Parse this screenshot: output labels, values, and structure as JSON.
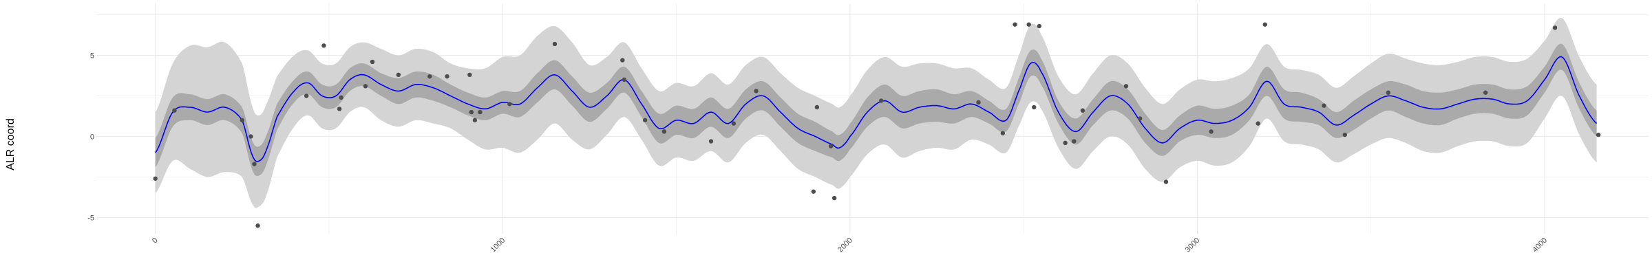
{
  "chart_data": {
    "type": "line",
    "title": "",
    "xlabel": "",
    "ylabel": "ALR coord",
    "xlim": [
      -150,
      4230
    ],
    "ylim": [
      -6.0,
      8.2
    ],
    "x_ticks": [
      0,
      1000,
      2000,
      3000,
      4000
    ],
    "x_tick_labels": [
      "0",
      "1000",
      "2000",
      "3000",
      "4000"
    ],
    "y_ticks": [
      -5,
      0,
      5
    ],
    "y_tick_labels": [
      "-5",
      "0",
      "5"
    ],
    "grid": true,
    "colors": {
      "mean_line": "#0000ff",
      "inner_band": "#aaaaaa",
      "outer_band": "#d4d4d4",
      "points": "#4d4d4d",
      "grid": "#ebebeb"
    },
    "series": [
      {
        "role": "mean",
        "x": [
          0,
          50,
          100,
          150,
          200,
          250,
          280,
          300,
          320,
          350,
          400,
          440,
          480,
          520,
          560,
          600,
          650,
          700,
          750,
          800,
          850,
          900,
          950,
          1000,
          1050,
          1100,
          1150,
          1200,
          1250,
          1300,
          1350,
          1400,
          1450,
          1500,
          1550,
          1600,
          1650,
          1700,
          1750,
          1800,
          1850,
          1900,
          1950,
          1970,
          2000,
          2050,
          2100,
          2150,
          2200,
          2250,
          2300,
          2350,
          2400,
          2450,
          2490,
          2520,
          2550,
          2600,
          2650,
          2700,
          2750,
          2800,
          2850,
          2900,
          2950,
          3000,
          3050,
          3100,
          3150,
          3200,
          3250,
          3300,
          3350,
          3400,
          3450,
          3500,
          3550,
          3600,
          3650,
          3700,
          3750,
          3800,
          3850,
          3900,
          3950,
          4000,
          4050,
          4100,
          4150
        ],
        "y": [
          -1.0,
          1.5,
          1.8,
          1.5,
          1.8,
          1.0,
          -1.2,
          -1.5,
          -0.8,
          1.2,
          2.8,
          3.3,
          2.5,
          2.5,
          3.5,
          3.8,
          3.2,
          2.8,
          3.2,
          3.0,
          2.5,
          2.0,
          1.7,
          2.1,
          2.0,
          3.0,
          3.8,
          2.8,
          1.8,
          2.5,
          3.5,
          2.0,
          0.5,
          1.0,
          0.8,
          1.5,
          0.8,
          2.0,
          2.5,
          1.5,
          0.5,
          0.0,
          -0.5,
          -0.7,
          0.0,
          1.5,
          2.2,
          1.5,
          1.8,
          1.9,
          1.7,
          2.0,
          1.5,
          1.0,
          3.0,
          4.5,
          4.0,
          1.5,
          0.3,
          1.5,
          2.5,
          2.0,
          0.5,
          -0.4,
          0.5,
          1.0,
          0.8,
          1.0,
          1.8,
          3.4,
          2.0,
          1.8,
          1.5,
          0.7,
          1.3,
          2.0,
          2.5,
          2.2,
          1.8,
          1.7,
          2.0,
          2.3,
          2.3,
          2.0,
          2.2,
          3.5,
          4.9,
          2.5,
          0.8
        ]
      }
    ],
    "inner_band_halfwidth": [
      0.9,
      0.9,
      0.8,
      0.8,
      0.8,
      0.8,
      0.9,
      0.9,
      0.9,
      0.8,
      0.7,
      0.7,
      0.7,
      0.7,
      0.7,
      0.7,
      0.7,
      0.8,
      0.8,
      0.8,
      0.7,
      0.7,
      0.7,
      0.7,
      0.8,
      0.9,
      0.9,
      0.9,
      0.9,
      0.8,
      0.8,
      0.8,
      0.9,
      0.9,
      0.9,
      0.9,
      0.9,
      0.9,
      0.9,
      0.9,
      0.9,
      0.9,
      0.8,
      0.8,
      0.8,
      0.9,
      1.0,
      1.0,
      1.0,
      1.0,
      0.9,
      0.8,
      0.7,
      0.7,
      0.8,
      0.8,
      0.8,
      0.7,
      0.8,
      0.8,
      0.9,
      0.9,
      0.9,
      0.8,
      0.8,
      0.9,
      0.9,
      0.9,
      0.8,
      0.9,
      0.9,
      0.9,
      0.8,
      0.8,
      0.9,
      0.9,
      0.9,
      1.0,
      1.0,
      1.0,
      0.9,
      0.9,
      0.9,
      0.9,
      0.9,
      0.8,
      0.8,
      0.8,
      0.8
    ],
    "outer_band_halfwidth": [
      2.5,
      3.0,
      3.8,
      4.0,
      4.0,
      3.5,
      3.0,
      2.8,
      2.8,
      2.5,
      2.2,
      2.0,
      2.0,
      2.0,
      2.0,
      2.0,
      2.2,
      2.2,
      2.2,
      2.2,
      2.0,
      2.2,
      2.5,
      2.8,
      3.0,
      3.2,
      3.0,
      3.0,
      2.6,
      2.4,
      2.3,
      2.2,
      2.3,
      2.3,
      2.3,
      2.4,
      2.4,
      2.4,
      2.4,
      2.4,
      2.5,
      2.5,
      2.5,
      2.5,
      2.5,
      2.6,
      2.7,
      2.8,
      2.7,
      2.6,
      2.5,
      2.2,
      2.0,
      2.0,
      2.2,
      2.4,
      2.3,
      2.2,
      2.3,
      2.4,
      2.5,
      2.5,
      2.5,
      2.4,
      2.4,
      2.5,
      2.6,
      2.6,
      2.4,
      2.3,
      2.3,
      2.3,
      2.3,
      2.3,
      2.4,
      2.5,
      2.6,
      2.6,
      2.7,
      2.7,
      2.6,
      2.6,
      2.6,
      2.6,
      2.6,
      2.4,
      2.4,
      2.4,
      2.4
    ],
    "points": [
      {
        "x": 0,
        "y": -2.6
      },
      {
        "x": 55,
        "y": 1.6
      },
      {
        "x": 250,
        "y": 1.0
      },
      {
        "x": 275,
        "y": 0.0
      },
      {
        "x": 285,
        "y": -1.7
      },
      {
        "x": 295,
        "y": -5.5
      },
      {
        "x": 435,
        "y": 2.5
      },
      {
        "x": 485,
        "y": 5.6
      },
      {
        "x": 530,
        "y": 1.7
      },
      {
        "x": 535,
        "y": 2.4
      },
      {
        "x": 605,
        "y": 3.1
      },
      {
        "x": 625,
        "y": 4.6
      },
      {
        "x": 700,
        "y": 3.8
      },
      {
        "x": 790,
        "y": 3.7
      },
      {
        "x": 840,
        "y": 3.7
      },
      {
        "x": 905,
        "y": 3.8
      },
      {
        "x": 910,
        "y": 1.5
      },
      {
        "x": 920,
        "y": 1.0
      },
      {
        "x": 935,
        "y": 1.5
      },
      {
        "x": 1020,
        "y": 2.0
      },
      {
        "x": 1150,
        "y": 5.7
      },
      {
        "x": 1345,
        "y": 4.7
      },
      {
        "x": 1350,
        "y": 3.5
      },
      {
        "x": 1410,
        "y": 1.0
      },
      {
        "x": 1465,
        "y": 0.3
      },
      {
        "x": 1600,
        "y": -0.3
      },
      {
        "x": 1665,
        "y": 0.8
      },
      {
        "x": 1730,
        "y": 2.8
      },
      {
        "x": 1895,
        "y": -3.4
      },
      {
        "x": 1905,
        "y": 1.8
      },
      {
        "x": 1945,
        "y": -0.6
      },
      {
        "x": 1955,
        "y": -3.8
      },
      {
        "x": 2090,
        "y": 2.2
      },
      {
        "x": 2370,
        "y": 2.1
      },
      {
        "x": 2440,
        "y": 0.2
      },
      {
        "x": 2475,
        "y": 6.9
      },
      {
        "x": 2515,
        "y": 6.9
      },
      {
        "x": 2530,
        "y": 1.8
      },
      {
        "x": 2545,
        "y": 6.8
      },
      {
        "x": 2620,
        "y": -0.4
      },
      {
        "x": 2645,
        "y": -0.3
      },
      {
        "x": 2670,
        "y": 1.6
      },
      {
        "x": 2795,
        "y": 3.1
      },
      {
        "x": 2835,
        "y": 1.1
      },
      {
        "x": 2910,
        "y": -2.8
      },
      {
        "x": 3040,
        "y": 0.3
      },
      {
        "x": 3175,
        "y": 0.8
      },
      {
        "x": 3195,
        "y": 6.9
      },
      {
        "x": 3365,
        "y": 1.9
      },
      {
        "x": 3425,
        "y": 0.1
      },
      {
        "x": 3550,
        "y": 2.7
      },
      {
        "x": 3830,
        "y": 2.7
      },
      {
        "x": 4030,
        "y": 6.7
      },
      {
        "x": 4155,
        "y": 0.1
      }
    ]
  }
}
